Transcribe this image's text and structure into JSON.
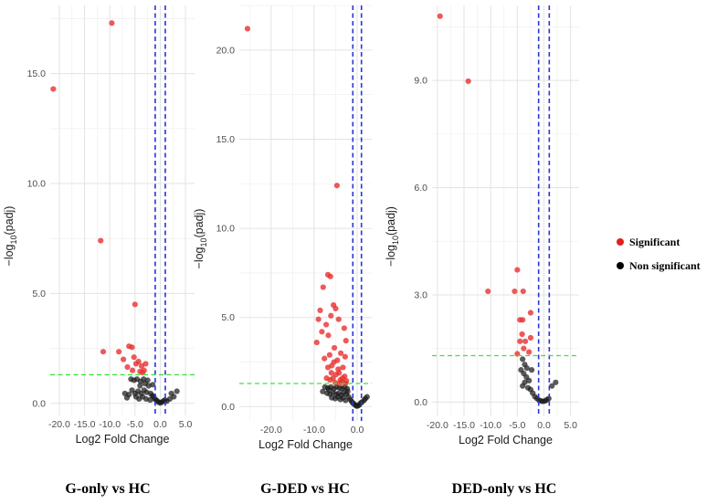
{
  "chart_data": [
    {
      "type": "scatter",
      "title": "G-only vs HC",
      "xlabel": "Log2 Fold Change",
      "ylabel": "-log10(padj)",
      "xlim": [
        -21.8,
        6.8
      ],
      "ylim": [
        -0.55,
        18.1
      ],
      "xticks": [
        -20,
        -15,
        -10,
        -5,
        0,
        5
      ],
      "xtick_labels": [
        "-20.0",
        "-15.0",
        "-10.0",
        "-5.0",
        "0.0",
        "5.0"
      ],
      "yticks": [
        0,
        5,
        10,
        15
      ],
      "ytick_labels": [
        "0.0",
        "5.0",
        "10.0",
        "15.0"
      ],
      "fc_threshold": [
        -1,
        1
      ],
      "padj_threshold": 1.3,
      "significant": [
        [
          -21.2,
          14.3
        ],
        [
          -9.6,
          17.3
        ],
        [
          -11.8,
          7.4
        ],
        [
          -11.3,
          2.35
        ],
        [
          -5.0,
          4.5
        ],
        [
          -8.2,
          2.35
        ],
        [
          -7.3,
          2.0
        ],
        [
          -6.2,
          2.6
        ],
        [
          -5.6,
          2.55
        ],
        [
          -5.2,
          2.1
        ],
        [
          -4.8,
          1.8
        ],
        [
          -6.5,
          1.65
        ],
        [
          -4.3,
          1.9
        ],
        [
          -3.7,
          1.7
        ],
        [
          -3.2,
          1.5
        ],
        [
          -2.9,
          1.8
        ],
        [
          -4.0,
          1.45
        ],
        [
          -3.5,
          1.4
        ],
        [
          -5.5,
          1.5
        ]
      ],
      "nonsignificant": [
        [
          -5.8,
          1.1
        ],
        [
          -5.2,
          1.05
        ],
        [
          -4.6,
          1.1
        ],
        [
          -3.9,
          1.0
        ],
        [
          -3.3,
          1.1
        ],
        [
          -7.0,
          0.45
        ],
        [
          -6.2,
          0.4
        ],
        [
          -5.6,
          0.6
        ],
        [
          -5.0,
          0.45
        ],
        [
          -4.4,
          0.55
        ],
        [
          -3.8,
          0.45
        ],
        [
          -3.2,
          0.6
        ],
        [
          -2.7,
          0.5
        ],
        [
          -2.3,
          0.8
        ],
        [
          -1.9,
          0.45
        ],
        [
          -1.6,
          0.35
        ],
        [
          -1.3,
          0.3
        ],
        [
          -1.1,
          0.2
        ],
        [
          -0.8,
          0.15
        ],
        [
          -0.6,
          0.1
        ],
        [
          -0.3,
          0.05
        ],
        [
          0.0,
          0.02
        ],
        [
          0.3,
          0.05
        ],
        [
          0.6,
          0.1
        ],
        [
          0.9,
          0.15
        ],
        [
          1.3,
          0.1
        ],
        [
          1.9,
          0.2
        ],
        [
          2.7,
          0.3
        ],
        [
          3.3,
          0.55
        ],
        [
          -4.8,
          0.3
        ],
        [
          -4.2,
          0.2
        ],
        [
          -3.5,
          0.3
        ],
        [
          -2.8,
          0.2
        ],
        [
          -2.0,
          0.15
        ],
        [
          -6.6,
          0.25
        ],
        [
          -1.5,
          0.85
        ],
        [
          -2.5,
          1.05
        ],
        [
          2.2,
          0.45
        ],
        [
          -3.0,
          0.9
        ],
        [
          -4.0,
          0.8
        ]
      ]
    },
    {
      "type": "scatter",
      "title": "G-DED vs HC",
      "xlabel": "Log2 Fold Change",
      "ylabel": "-log10(padj)",
      "xlim": [
        -27.4,
        3.4
      ],
      "ylim": [
        -0.8,
        22.5
      ],
      "xticks": [
        -20,
        -10,
        0
      ],
      "xtick_labels": [
        "-20.0",
        "-10.0",
        "0.0"
      ],
      "yticks": [
        0,
        5,
        10,
        15,
        20
      ],
      "ytick_labels": [
        "0.0",
        "5.0",
        "10.0",
        "15.0",
        "20.0"
      ],
      "fc_threshold": [
        -1,
        1
      ],
      "padj_threshold": 1.3,
      "significant": [
        [
          -25.5,
          21.2
        ],
        [
          -4.7,
          12.4
        ],
        [
          -6.8,
          7.4
        ],
        [
          -6.2,
          7.3
        ],
        [
          -7.9,
          6.7
        ],
        [
          -5.5,
          5.7
        ],
        [
          -5.0,
          5.5
        ],
        [
          -8.6,
          5.4
        ],
        [
          -9.0,
          4.9
        ],
        [
          -6.1,
          5.1
        ],
        [
          -7.2,
          4.6
        ],
        [
          -4.3,
          4.9
        ],
        [
          -8.2,
          4.2
        ],
        [
          -6.7,
          4.0
        ],
        [
          -3.0,
          4.4
        ],
        [
          -2.6,
          3.7
        ],
        [
          -5.3,
          3.3
        ],
        [
          -9.4,
          3.6
        ],
        [
          -3.8,
          3.0
        ],
        [
          -2.8,
          2.8
        ],
        [
          -6.4,
          2.9
        ],
        [
          -4.6,
          2.6
        ],
        [
          -7.6,
          2.7
        ],
        [
          -5.9,
          2.3
        ],
        [
          -3.3,
          2.2
        ],
        [
          -4.2,
          1.9
        ],
        [
          -2.9,
          1.7
        ],
        [
          -5.6,
          1.6
        ],
        [
          -6.3,
          1.5
        ],
        [
          -3.6,
          1.4
        ],
        [
          -4.9,
          1.8
        ],
        [
          -7.1,
          1.6
        ],
        [
          -2.5,
          1.45
        ],
        [
          -3.9,
          1.5
        ],
        [
          -5.1,
          1.35
        ],
        [
          -6.0,
          1.9
        ],
        [
          -4.4,
          2.1
        ],
        [
          -3.4,
          1.6
        ],
        [
          -2.7,
          1.3
        ],
        [
          -6.8,
          2.2
        ],
        [
          -5.4,
          2.5
        ],
        [
          -4.0,
          1.3
        ]
      ],
      "nonsignificant": [
        [
          -7.5,
          1.1
        ],
        [
          -6.8,
          1.05
        ],
        [
          -6.1,
          1.1
        ],
        [
          -5.4,
          1.0
        ],
        [
          -4.8,
          1.1
        ],
        [
          -4.1,
          1.05
        ],
        [
          -3.5,
          1.0
        ],
        [
          -2.9,
          1.1
        ],
        [
          -2.3,
          1.0
        ],
        [
          -7.0,
          0.75
        ],
        [
          -6.3,
          0.7
        ],
        [
          -5.6,
          0.8
        ],
        [
          -4.9,
          0.7
        ],
        [
          -4.3,
          0.75
        ],
        [
          -3.7,
          0.65
        ],
        [
          -3.1,
          0.8
        ],
        [
          -2.5,
          0.7
        ],
        [
          -2.0,
          0.55
        ],
        [
          -1.6,
          0.4
        ],
        [
          -1.3,
          0.3
        ],
        [
          -1.0,
          0.2
        ],
        [
          -0.7,
          0.15
        ],
        [
          -0.4,
          0.08
        ],
        [
          -0.1,
          0.03
        ],
        [
          0.2,
          0.05
        ],
        [
          0.5,
          0.1
        ],
        [
          0.8,
          0.2
        ],
        [
          1.1,
          0.25
        ],
        [
          1.6,
          0.35
        ],
        [
          2.3,
          0.55
        ],
        [
          -5.9,
          0.5
        ],
        [
          -5.1,
          0.45
        ],
        [
          -4.5,
          0.55
        ],
        [
          -3.9,
          0.4
        ],
        [
          -3.3,
          0.5
        ],
        [
          -2.7,
          0.35
        ],
        [
          -8.0,
          0.85
        ],
        [
          -6.6,
          0.95
        ],
        [
          -2.2,
          0.85
        ],
        [
          1.9,
          0.45
        ]
      ]
    },
    {
      "type": "scatter",
      "title": "DED-only vs HC",
      "xlabel": "Log2 Fold Change",
      "ylabel": "-log10(padj)",
      "xlim": [
        -21.0,
        6.6
      ],
      "ylim": [
        -0.4,
        11.1
      ],
      "xticks": [
        -20,
        -15,
        -10,
        -5,
        0,
        5
      ],
      "xtick_labels": [
        "-20.0",
        "-15.0",
        "-10.0",
        "-5.0",
        "0.0",
        "5.0"
      ],
      "yticks": [
        0,
        3,
        6,
        9
      ],
      "ytick_labels": [
        "0.0",
        "3.0",
        "6.0",
        "9.0"
      ],
      "fc_threshold": [
        -1,
        1
      ],
      "padj_threshold": 1.3,
      "significant": [
        [
          -19.5,
          10.8
        ],
        [
          -14.2,
          8.98
        ],
        [
          -10.5,
          3.1
        ],
        [
          -5.0,
          3.7
        ],
        [
          -5.5,
          3.1
        ],
        [
          -3.9,
          3.1
        ],
        [
          -4.5,
          2.3
        ],
        [
          -4.0,
          2.3
        ],
        [
          -2.5,
          2.5
        ],
        [
          -4.1,
          1.9
        ],
        [
          -4.5,
          1.7
        ],
        [
          -3.5,
          1.7
        ],
        [
          -3.8,
          1.5
        ],
        [
          -2.5,
          1.8
        ],
        [
          -5.0,
          1.35
        ],
        [
          -2.8,
          1.4
        ]
      ],
      "nonsignificant": [
        [
          -4.0,
          1.2
        ],
        [
          -3.6,
          1.05
        ],
        [
          -3.2,
          0.95
        ],
        [
          -4.3,
          0.9
        ],
        [
          -3.8,
          0.8
        ],
        [
          -3.3,
          0.7
        ],
        [
          -2.8,
          0.6
        ],
        [
          -3.6,
          0.55
        ],
        [
          -4.0,
          0.45
        ],
        [
          -3.0,
          0.4
        ],
        [
          -2.5,
          0.35
        ],
        [
          -2.1,
          0.25
        ],
        [
          -1.7,
          0.15
        ],
        [
          -1.3,
          0.1
        ],
        [
          -0.9,
          0.05
        ],
        [
          -0.5,
          0.03
        ],
        [
          -0.2,
          0.02
        ],
        [
          0.2,
          0.03
        ],
        [
          0.5,
          0.06
        ],
        [
          0.9,
          0.1
        ],
        [
          1.5,
          0.45
        ],
        [
          2.2,
          0.55
        ],
        [
          -2.3,
          0.9
        ]
      ]
    }
  ],
  "legend": {
    "significant_label": "Significant",
    "nonsignificant_label": "Non significant",
    "significant_color": "#e02020",
    "nonsignificant_color": "#000000"
  },
  "colors": {
    "significant": "#e83030",
    "nonsignificant": "#1a1a1a",
    "fc_line": "#2b35d6",
    "padj_line": "#39e639"
  }
}
